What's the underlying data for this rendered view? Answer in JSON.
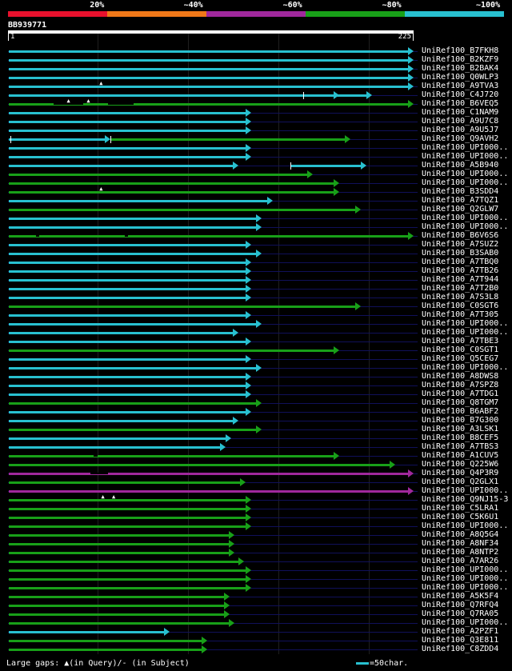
{
  "legend": {
    "segments": [
      {
        "color": "#e8112d",
        "label": "20%"
      },
      {
        "color": "#f07818",
        "label": "~40%"
      },
      {
        "color": "#a0289c",
        "label": "~60%"
      },
      {
        "color": "#18a018",
        "label": "~80%"
      },
      {
        "color": "#28c0d0",
        "label": "~100%"
      }
    ]
  },
  "query": {
    "id": "BB939771",
    "start": "1",
    "end": "225"
  },
  "footer": {
    "gaps_legend": "Large gaps: ▲(in Query)/- (in Subject)",
    "scale_label": "=50char."
  },
  "hits": [
    {
      "name": "UniRef100_B7FKH8",
      "color": "cyan",
      "start": 1,
      "end": 225
    },
    {
      "name": "UniRef100_B2KZF9",
      "color": "cyan",
      "start": 1,
      "end": 225
    },
    {
      "name": "UniRef100_B2BAK4",
      "color": "cyan",
      "start": 1,
      "end": 225
    },
    {
      "name": "UniRef100_Q0WLP3",
      "color": "cyan",
      "start": 1,
      "end": 225
    },
    {
      "name": "UniRef100_A9TVA3",
      "color": "cyan",
      "start": 1,
      "end": 225,
      "gapq": [
        52
      ]
    },
    {
      "name": "UniRef100_C4J720",
      "color": "cyan",
      "start": 1,
      "end": 202,
      "ticks": [
        164
      ],
      "heads": [
        184
      ]
    },
    {
      "name": "UniRef100_B6VEQ5",
      "color": "green",
      "start": 1,
      "end": 225,
      "gapq": [
        34,
        45
      ],
      "gaps": [
        [
          26,
          42
        ],
        [
          56,
          70
        ]
      ]
    },
    {
      "name": "UniRef100_C1NAM9",
      "color": "cyan",
      "start": 1,
      "end": 135
    },
    {
      "name": "UniRef100_A9U7C8",
      "color": "cyan",
      "start": 1,
      "end": 135
    },
    {
      "name": "UniRef100_A9U5J7",
      "color": "cyan",
      "start": 1,
      "end": 135
    },
    {
      "name": "UniRef100_Q9AVH2",
      "color": "cyan",
      "start": 1,
      "end": 57,
      "ticks": [
        2,
        57
      ],
      "seg2": {
        "color": "green",
        "start": 57,
        "end": 190
      }
    },
    {
      "name": "UniRef100_UPI000..",
      "color": "cyan",
      "start": 1,
      "end": 135
    },
    {
      "name": "UniRef100_UPI000..",
      "color": "cyan",
      "start": 1,
      "end": 135
    },
    {
      "name": "UniRef100_A5B940",
      "color": "cyan",
      "start": 1,
      "end": 128,
      "seg2": {
        "color": "cyan",
        "start": 157,
        "end": 199,
        "tick": true
      }
    },
    {
      "name": "UniRef100_UPI000..",
      "color": "green",
      "start": 1,
      "end": 169
    },
    {
      "name": "UniRef100_UPI000..",
      "color": "green",
      "start": 1,
      "end": 184
    },
    {
      "name": "UniRef100_B3SDD4",
      "color": "green",
      "start": 1,
      "end": 184,
      "gapq": [
        52
      ]
    },
    {
      "name": "UniRef100_A7TQZ1",
      "color": "cyan",
      "start": 1,
      "end": 147
    },
    {
      "name": "UniRef100_Q2GLW7",
      "color": "green",
      "start": 1,
      "end": 196
    },
    {
      "name": "UniRef100_UPI000..",
      "color": "cyan",
      "start": 1,
      "end": 141
    },
    {
      "name": "UniRef100_UPI000..",
      "color": "cyan",
      "start": 1,
      "end": 141
    },
    {
      "name": "UniRef100_B6V6S6",
      "color": "green",
      "start": 1,
      "end": 225,
      "gaps": [
        [
          16,
          18
        ],
        [
          65,
          67
        ]
      ]
    },
    {
      "name": "UniRef100_A7SUZ2",
      "color": "cyan",
      "start": 1,
      "end": 135
    },
    {
      "name": "UniRef100_B3SAB0",
      "color": "cyan",
      "start": 1,
      "end": 141
    },
    {
      "name": "UniRef100_A7TBQ0",
      "color": "cyan",
      "start": 1,
      "end": 135
    },
    {
      "name": "UniRef100_A7TB26",
      "color": "cyan",
      "start": 1,
      "end": 135
    },
    {
      "name": "UniRef100_A7T944",
      "color": "cyan",
      "start": 1,
      "end": 135
    },
    {
      "name": "UniRef100_A7T2B0",
      "color": "cyan",
      "start": 1,
      "end": 135
    },
    {
      "name": "UniRef100_A7S3L8",
      "color": "cyan",
      "start": 1,
      "end": 135
    },
    {
      "name": "UniRef100_C0SGT6",
      "color": "green",
      "start": 1,
      "end": 196
    },
    {
      "name": "UniRef100_A7T305",
      "color": "cyan",
      "start": 1,
      "end": 135
    },
    {
      "name": "UniRef100_UPI000..",
      "color": "cyan",
      "start": 1,
      "end": 141
    },
    {
      "name": "UniRef100_UPI000..",
      "color": "cyan",
      "start": 1,
      "end": 128
    },
    {
      "name": "UniRef100_A7TBE3",
      "color": "cyan",
      "start": 1,
      "end": 135
    },
    {
      "name": "UniRef100_C0SGT1",
      "color": "green",
      "start": 1,
      "end": 184
    },
    {
      "name": "UniRef100_Q5CEG7",
      "color": "cyan",
      "start": 1,
      "end": 135
    },
    {
      "name": "UniRef100_UPI000..",
      "color": "cyan",
      "start": 1,
      "end": 141
    },
    {
      "name": "UniRef100_A8DWS8",
      "color": "cyan",
      "start": 1,
      "end": 135
    },
    {
      "name": "UniRef100_A7SPZ8",
      "color": "cyan",
      "start": 1,
      "end": 135
    },
    {
      "name": "UniRef100_A7TDG1",
      "color": "cyan",
      "start": 1,
      "end": 135
    },
    {
      "name": "UniRef100_Q8TGM7",
      "color": "green",
      "start": 1,
      "end": 141
    },
    {
      "name": "UniRef100_B6ABF2",
      "color": "cyan",
      "start": 1,
      "end": 135
    },
    {
      "name": "UniRef100_B7G300",
      "color": "cyan",
      "start": 1,
      "end": 128
    },
    {
      "name": "UniRef100_A3LSK1",
      "color": "green",
      "start": 1,
      "end": 141
    },
    {
      "name": "UniRef100_B8CEF5",
      "color": "cyan",
      "start": 1,
      "end": 124
    },
    {
      "name": "UniRef100_A7TBS3",
      "color": "cyan",
      "start": 1,
      "end": 121
    },
    {
      "name": "UniRef100_A1CUV5",
      "color": "green",
      "start": 1,
      "end": 184,
      "gaps": [
        [
          48,
          50
        ]
      ]
    },
    {
      "name": "UniRef100_Q225W6",
      "color": "green",
      "start": 1,
      "end": 215
    },
    {
      "name": "UniRef100_Q4P3R9",
      "color": "magenta",
      "start": 1,
      "end": 225,
      "gaps": [
        [
          46,
          56
        ]
      ]
    },
    {
      "name": "UniRef100_Q2GLX1",
      "color": "green",
      "start": 1,
      "end": 132
    },
    {
      "name": "UniRef100_UPI000..",
      "color": "magenta",
      "start": 1,
      "end": 225
    },
    {
      "name": "UniRef100_Q9NJ15-3",
      "color": "green",
      "start": 1,
      "end": 135,
      "gapq": [
        53,
        59
      ]
    },
    {
      "name": "UniRef100_C5LRA1",
      "color": "green",
      "start": 1,
      "end": 135
    },
    {
      "name": "UniRef100_C5K6U1",
      "color": "green",
      "start": 1,
      "end": 135
    },
    {
      "name": "UniRef100_UPI000..",
      "color": "green",
      "start": 1,
      "end": 135
    },
    {
      "name": "UniRef100_A8Q5G4",
      "color": "green",
      "start": 1,
      "end": 126
    },
    {
      "name": "UniRef100_A8NF34",
      "color": "green",
      "start": 1,
      "end": 126
    },
    {
      "name": "UniRef100_A8NTP2",
      "color": "green",
      "start": 1,
      "end": 126
    },
    {
      "name": "UniRef100_A7AR26",
      "color": "green",
      "start": 1,
      "end": 131
    },
    {
      "name": "UniRef100_UPI000..",
      "color": "green",
      "start": 1,
      "end": 135
    },
    {
      "name": "UniRef100_UPI000..",
      "color": "green",
      "start": 1,
      "end": 135
    },
    {
      "name": "UniRef100_UPI000..",
      "color": "green",
      "start": 1,
      "end": 135
    },
    {
      "name": "UniRef100_A5K5F4",
      "color": "green",
      "start": 1,
      "end": 123
    },
    {
      "name": "UniRef100_Q7RFQ4",
      "color": "green",
      "start": 1,
      "end": 123
    },
    {
      "name": "UniRef100_Q7RA05",
      "color": "green",
      "start": 1,
      "end": 123
    },
    {
      "name": "UniRef100_UPI000..",
      "color": "green",
      "start": 1,
      "end": 126
    },
    {
      "name": "UniRef100_A2PZF1",
      "color": "cyan",
      "start": 1,
      "end": 90
    },
    {
      "name": "UniRef100_Q3E811",
      "color": "green",
      "start": 1,
      "end": 111
    },
    {
      "name": "UniRef100_C8ZDD4",
      "color": "green",
      "start": 1,
      "end": 111
    }
  ],
  "colors": {
    "cyan": "#28c0d0",
    "green": "#18a018",
    "magenta": "#a0289c",
    "guide": "#10105a"
  }
}
